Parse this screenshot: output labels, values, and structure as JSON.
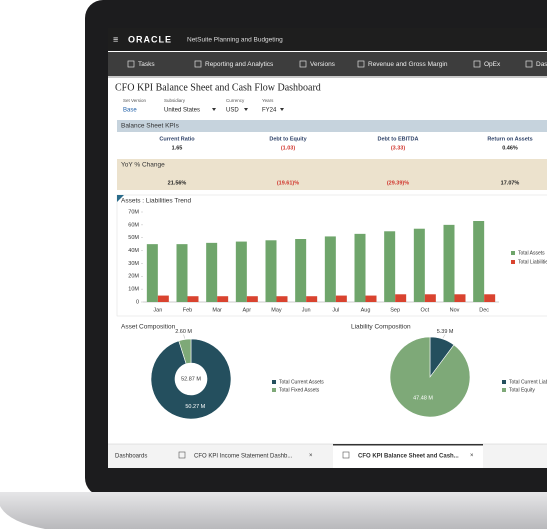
{
  "header": {
    "logo": "ORACLE",
    "product": "NetSuite Planning and Budgeting"
  },
  "tabs": [
    "Tasks",
    "Reporting and Analytics",
    "Versions",
    "Revenue and Gross Margin",
    "OpEx",
    "Dashboards"
  ],
  "dashboard": {
    "title": "CFO KPI Balance Sheet and Cash Flow Dashboard",
    "filters": [
      {
        "label": "Set Version",
        "value": "Base"
      },
      {
        "label": "Subsidiary",
        "value": "United States"
      },
      {
        "label": "Currency",
        "value": "USD"
      },
      {
        "label": "Years",
        "value": "FY24"
      }
    ]
  },
  "kpis": {
    "title": "Balance Sheet KPIs",
    "items": [
      {
        "label": "Current Ratio",
        "value": "1.65"
      },
      {
        "label": "Debt to Equity",
        "value": "(1.03)"
      },
      {
        "label": "Debt to EBITDA",
        "value": "(3.33)"
      },
      {
        "label": "Return on Assets",
        "value": "0.46%"
      }
    ]
  },
  "yoy": {
    "title": "YoY % Change",
    "values": [
      "21.56%",
      "(19.61)%",
      "(29.39)%",
      "17.07%"
    ]
  },
  "trend_chart": {
    "type": "bar",
    "title": "Assets : Liabilities Trend",
    "categories": [
      "Jan",
      "Feb",
      "Mar",
      "Apr",
      "May",
      "Jun",
      "Jul",
      "Aug",
      "Sep",
      "Oct",
      "Nov",
      "Dec"
    ],
    "series": [
      {
        "name": "Total Assets",
        "color": "#6fa56b",
        "values": [
          45,
          45,
          46,
          47,
          48,
          49,
          51,
          53,
          55,
          57,
          60,
          63
        ]
      },
      {
        "name": "Total Liabilities",
        "color": "#d9432f",
        "values": [
          5,
          4.5,
          4.5,
          4.5,
          4.5,
          4.5,
          5,
          5,
          6,
          6,
          6,
          6
        ]
      }
    ],
    "ylim": [
      0,
      70
    ],
    "yticks": [
      0,
      {
        "value": 10,
        "label": "10M"
      },
      {
        "value": 20,
        "label": "20M"
      },
      {
        "value": 30,
        "label": "30M"
      },
      {
        "value": 40,
        "label": "40M"
      },
      {
        "value": 50,
        "label": "50M"
      },
      {
        "value": 60,
        "label": "60M"
      },
      {
        "value": 70,
        "label": "70M"
      }
    ]
  },
  "asset_chart": {
    "type": "pie",
    "title": "Asset Composition",
    "donut": true,
    "center_label": "52.87 M",
    "categories": [
      "Total Current Assets",
      "Total Fixed Assets"
    ],
    "values": [
      50.27,
      2.6
    ],
    "value_labels": [
      "50.27 M",
      "2.60 M"
    ],
    "colors": [
      "#244f5e",
      "#7ea978"
    ]
  },
  "liability_chart": {
    "type": "pie",
    "title": "Liability Composition",
    "donut": false,
    "categories": [
      "Total Current Liabilities",
      "Total Equity"
    ],
    "values": [
      5.39,
      47.48
    ],
    "value_labels": [
      "5.39 M",
      "47.48 M"
    ],
    "colors": [
      "#244f5e",
      "#7ea978"
    ]
  },
  "bottom_tabs": [
    "Dashboards",
    "CFO KPI Income Statement Dashb...",
    "CFO KPI Balance Sheet and Cash..."
  ]
}
